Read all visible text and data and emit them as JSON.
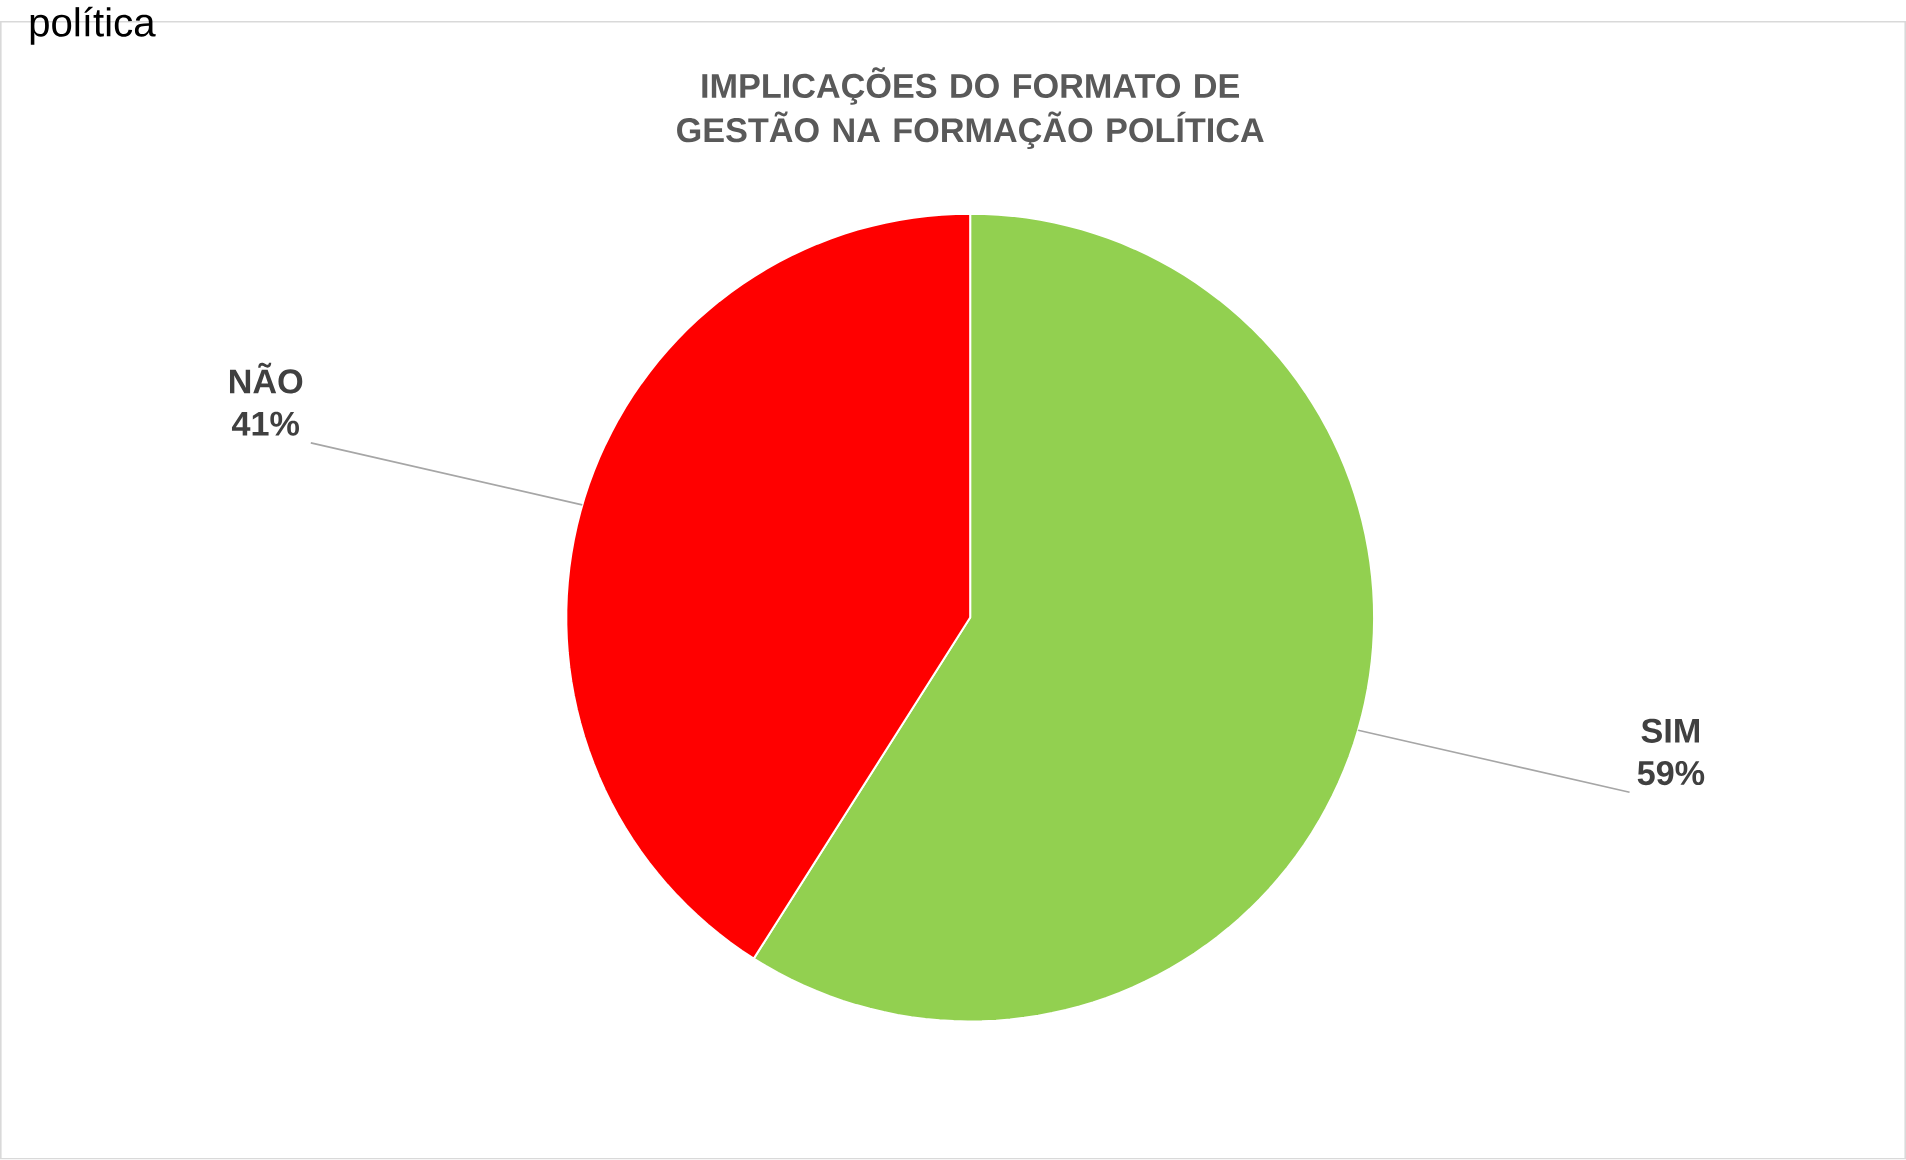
{
  "chart_data": {
    "type": "pie",
    "title": "IMPLICAÇÕES DO FORMATO DE GESTÃO NA FORMAÇÃO POLÍTICA",
    "categories": [
      "SIM",
      "NÃO"
    ],
    "values": [
      59,
      41
    ],
    "colors": [
      "#92d050",
      "#ff0000"
    ],
    "value_labels": [
      "59%",
      "41%"
    ],
    "annotations": [
      "política"
    ]
  }
}
